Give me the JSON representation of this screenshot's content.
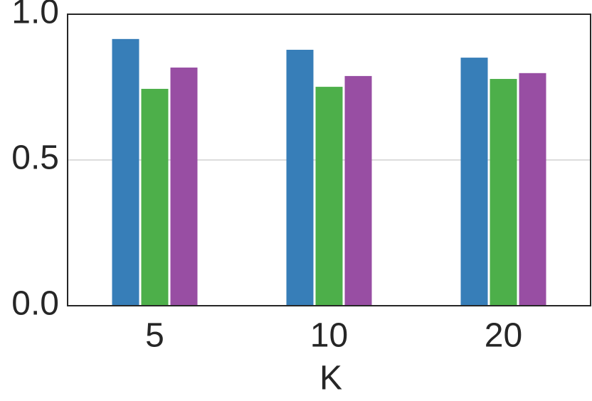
{
  "chart_data": {
    "type": "bar",
    "xlabel": "K",
    "categories": [
      "5",
      "10",
      "20"
    ],
    "series": [
      {
        "color": "#377eb8",
        "values": [
          0.915,
          0.878,
          0.851
        ]
      },
      {
        "color": "#4daf4a",
        "values": [
          0.744,
          0.751,
          0.778
        ]
      },
      {
        "color": "#984ea3",
        "values": [
          0.817,
          0.788,
          0.798
        ]
      }
    ],
    "ylim": [
      0,
      1
    ],
    "yticks": [
      {
        "value": 0,
        "label": "0.0"
      },
      {
        "value": 0.5,
        "label": "0.5"
      },
      {
        "value": 1,
        "label": "1.0"
      }
    ],
    "grid": true
  }
}
